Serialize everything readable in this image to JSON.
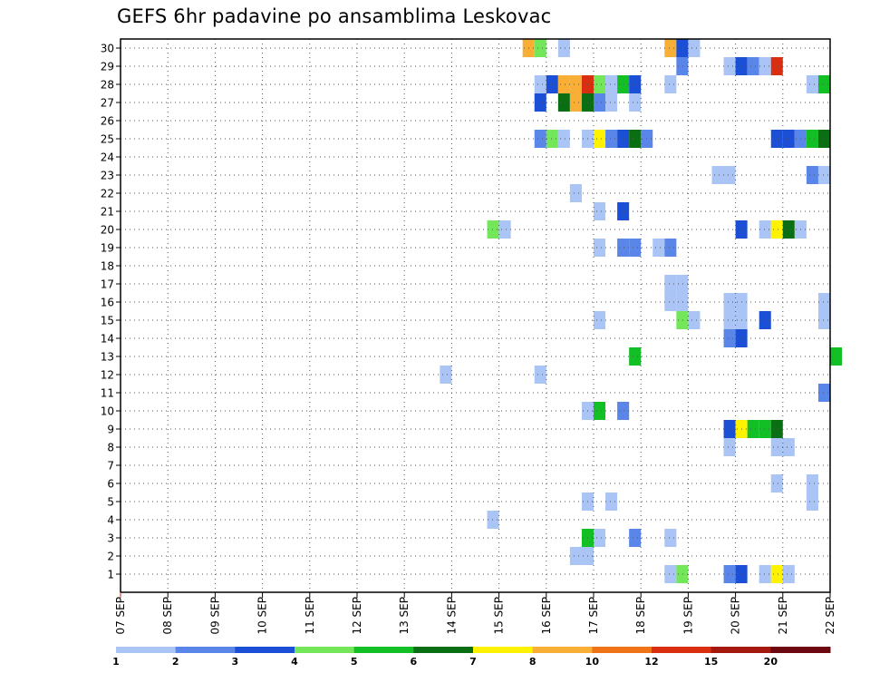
{
  "chart_data": {
    "type": "heatmap",
    "title": "GEFS 6hr padavine po ansamblima Leskovac",
    "x_tick_labels": [
      "07 SEP",
      "08 SEP",
      "09 SEP",
      "10 SEP",
      "11 SEP",
      "12 SEP",
      "13 SEP",
      "14 SEP",
      "15 SEP",
      "16 SEP",
      "17 SEP",
      "18 SEP",
      "19 SEP",
      "20 SEP",
      "21 SEP",
      "22 SEP"
    ],
    "y_tick_labels": [
      "1",
      "2",
      "3",
      "4",
      "5",
      "6",
      "7",
      "8",
      "9",
      "10",
      "11",
      "12",
      "13",
      "14",
      "15",
      "16",
      "17",
      "18",
      "19",
      "20",
      "21",
      "22",
      "23",
      "24",
      "25",
      "26",
      "27",
      "28",
      "29",
      "30"
    ],
    "xlim": [
      "07 SEP",
      "22 SEP"
    ],
    "ylim": [
      0,
      30
    ],
    "time_step_hours": 6,
    "grid": "dotted",
    "colorbar": {
      "levels": [
        1,
        2,
        3,
        4,
        5,
        6,
        7,
        8,
        10,
        12,
        15,
        20
      ],
      "labels": [
        "1",
        "2",
        "3",
        "4",
        "5",
        "6",
        "7",
        "8",
        "10",
        "12",
        "15",
        "20"
      ],
      "colors": [
        "#aac4f6",
        "#5a86ea",
        "#1b4fd6",
        "#74e65a",
        "#12bf25",
        "#0a6f12",
        "#fff200",
        "#f9ae36",
        "#f07318",
        "#d92e10",
        "#a41810",
        "#6e0810"
      ]
    },
    "cells": [
      [
        "15 SEP 12Z",
        30,
        "#f9ae36"
      ],
      [
        "15 SEP 18Z",
        30,
        "#74e65a"
      ],
      [
        "16 SEP 06Z",
        30,
        "#aac4f6"
      ],
      [
        "18 SEP 12Z",
        30,
        "#f9ae36"
      ],
      [
        "18 SEP 18Z",
        30,
        "#1b4fd6"
      ],
      [
        "19 SEP 00Z",
        30,
        "#aac4f6"
      ],
      [
        "18 SEP 18Z",
        29,
        "#5a86ea"
      ],
      [
        "19 SEP 18Z",
        29,
        "#aac4f6"
      ],
      [
        "20 SEP 00Z",
        29,
        "#1b4fd6"
      ],
      [
        "20 SEP 06Z",
        29,
        "#5a86ea"
      ],
      [
        "20 SEP 12Z",
        29,
        "#aac4f6"
      ],
      [
        "20 SEP 18Z",
        29,
        "#d92e10"
      ],
      [
        "15 SEP 18Z",
        28,
        "#aac4f6"
      ],
      [
        "16 SEP 00Z",
        28,
        "#1b4fd6"
      ],
      [
        "16 SEP 06Z",
        28,
        "#f9ae36"
      ],
      [
        "16 SEP 12Z",
        28,
        "#f9ae36"
      ],
      [
        "16 SEP 18Z",
        28,
        "#d92e10"
      ],
      [
        "17 SEP 00Z",
        28,
        "#74e65a"
      ],
      [
        "17 SEP 06Z",
        28,
        "#aac4f6"
      ],
      [
        "17 SEP 12Z",
        28,
        "#12bf25"
      ],
      [
        "17 SEP 18Z",
        28,
        "#1b4fd6"
      ],
      [
        "18 SEP 12Z",
        28,
        "#aac4f6"
      ],
      [
        "21 SEP 12Z",
        28,
        "#aac4f6"
      ],
      [
        "21 SEP 18Z",
        28,
        "#12bf25"
      ],
      [
        "15 SEP 18Z",
        27,
        "#1b4fd6"
      ],
      [
        "16 SEP 06Z",
        27,
        "#0a6f12"
      ],
      [
        "16 SEP 12Z",
        27,
        "#f9ae36"
      ],
      [
        "16 SEP 18Z",
        27,
        "#0a6f12"
      ],
      [
        "17 SEP 00Z",
        27,
        "#5a86ea"
      ],
      [
        "17 SEP 06Z",
        27,
        "#aac4f6"
      ],
      [
        "17 SEP 18Z",
        27,
        "#aac4f6"
      ],
      [
        "15 SEP 18Z",
        25,
        "#5a86ea"
      ],
      [
        "16 SEP 00Z",
        25,
        "#74e65a"
      ],
      [
        "16 SEP 06Z",
        25,
        "#aac4f6"
      ],
      [
        "16 SEP 18Z",
        25,
        "#aac4f6"
      ],
      [
        "17 SEP 00Z",
        25,
        "#fff200"
      ],
      [
        "17 SEP 06Z",
        25,
        "#5a86ea"
      ],
      [
        "17 SEP 12Z",
        25,
        "#1b4fd6"
      ],
      [
        "17 SEP 18Z",
        25,
        "#0a6f12"
      ],
      [
        "18 SEP 00Z",
        25,
        "#5a86ea"
      ],
      [
        "20 SEP 18Z",
        25,
        "#1b4fd6"
      ],
      [
        "21 SEP 00Z",
        25,
        "#1b4fd6"
      ],
      [
        "21 SEP 06Z",
        25,
        "#5a86ea"
      ],
      [
        "21 SEP 12Z",
        25,
        "#12bf25"
      ],
      [
        "21 SEP 18Z",
        25,
        "#0a6f12"
      ],
      [
        "19 SEP 12Z",
        23,
        "#aac4f6"
      ],
      [
        "19 SEP 18Z",
        23,
        "#aac4f6"
      ],
      [
        "21 SEP 12Z",
        23,
        "#5a86ea"
      ],
      [
        "21 SEP 18Z",
        23,
        "#aac4f6"
      ],
      [
        "16 SEP 12Z",
        22,
        "#aac4f6"
      ],
      [
        "17 SEP 00Z",
        21,
        "#aac4f6"
      ],
      [
        "17 SEP 12Z",
        21,
        "#1b4fd6"
      ],
      [
        "14 SEP 18Z",
        20,
        "#74e65a"
      ],
      [
        "15 SEP 00Z",
        20,
        "#aac4f6"
      ],
      [
        "20 SEP 00Z",
        20,
        "#1b4fd6"
      ],
      [
        "20 SEP 12Z",
        20,
        "#aac4f6"
      ],
      [
        "20 SEP 18Z",
        20,
        "#fff200"
      ],
      [
        "21 SEP 00Z",
        20,
        "#0a6f12"
      ],
      [
        "21 SEP 06Z",
        20,
        "#aac4f6"
      ],
      [
        "17 SEP 00Z",
        19,
        "#aac4f6"
      ],
      [
        "17 SEP 12Z",
        19,
        "#5a86ea"
      ],
      [
        "17 SEP 18Z",
        19,
        "#5a86ea"
      ],
      [
        "18 SEP 06Z",
        19,
        "#aac4f6"
      ],
      [
        "18 SEP 12Z",
        19,
        "#5a86ea"
      ],
      [
        "18 SEP 12Z",
        17,
        "#aac4f6"
      ],
      [
        "18 SEP 18Z",
        17,
        "#aac4f6"
      ],
      [
        "18 SEP 12Z",
        16,
        "#aac4f6"
      ],
      [
        "18 SEP 18Z",
        16,
        "#aac4f6"
      ],
      [
        "17 SEP 00Z",
        15,
        "#aac4f6"
      ],
      [
        "18 SEP 18Z",
        15,
        "#74e65a"
      ],
      [
        "19 SEP 00Z",
        15,
        "#aac4f6"
      ],
      [
        "19 SEP 18Z",
        15,
        "#aac4f6"
      ],
      [
        "20 SEP 00Z",
        15,
        "#aac4f6"
      ],
      [
        "20 SEP 12Z",
        15,
        "#1b4fd6"
      ],
      [
        "21 SEP 18Z",
        15,
        "#aac4f6"
      ],
      [
        "19 SEP 18Z",
        16,
        "#aac4f6"
      ],
      [
        "20 SEP 00Z",
        16,
        "#aac4f6"
      ],
      [
        "21 SEP 18Z",
        16,
        "#aac4f6"
      ],
      [
        "19 SEP 18Z",
        14,
        "#5a86ea"
      ],
      [
        "20 SEP 00Z",
        14,
        "#1b4fd6"
      ],
      [
        "17 SEP 18Z",
        13,
        "#12bf25"
      ],
      [
        "22 SEP 00Z",
        13,
        "#12bf25"
      ],
      [
        "13 SEP 18Z",
        12,
        "#aac4f6"
      ],
      [
        "15 SEP 18Z",
        12,
        "#aac4f6"
      ],
      [
        "21 SEP 18Z",
        11,
        "#5a86ea"
      ],
      [
        "16 SEP 18Z",
        10,
        "#aac4f6"
      ],
      [
        "17 SEP 00Z",
        10,
        "#12bf25"
      ],
      [
        "17 SEP 12Z",
        10,
        "#5a86ea"
      ],
      [
        "19 SEP 18Z",
        9,
        "#1b4fd6"
      ],
      [
        "20 SEP 00Z",
        9,
        "#fff200"
      ],
      [
        "20 SEP 06Z",
        9,
        "#12bf25"
      ],
      [
        "20 SEP 12Z",
        9,
        "#12bf25"
      ],
      [
        "20 SEP 18Z",
        9,
        "#0a6f12"
      ],
      [
        "19 SEP 18Z",
        8,
        "#aac4f6"
      ],
      [
        "20 SEP 18Z",
        8,
        "#aac4f6"
      ],
      [
        "21 SEP 00Z",
        8,
        "#aac4f6"
      ],
      [
        "20 SEP 18Z",
        6,
        "#aac4f6"
      ],
      [
        "21 SEP 12Z",
        6,
        "#aac4f6"
      ],
      [
        "16 SEP 18Z",
        5,
        "#aac4f6"
      ],
      [
        "17 SEP 06Z",
        5,
        "#aac4f6"
      ],
      [
        "21 SEP 12Z",
        5,
        "#aac4f6"
      ],
      [
        "14 SEP 18Z",
        4,
        "#aac4f6"
      ],
      [
        "16 SEP 18Z",
        3,
        "#12bf25"
      ],
      [
        "17 SEP 00Z",
        3,
        "#aac4f6"
      ],
      [
        "17 SEP 18Z",
        3,
        "#5a86ea"
      ],
      [
        "18 SEP 12Z",
        3,
        "#aac4f6"
      ],
      [
        "16 SEP 12Z",
        2,
        "#aac4f6"
      ],
      [
        "16 SEP 18Z",
        2,
        "#aac4f6"
      ],
      [
        "18 SEP 12Z",
        1,
        "#aac4f6"
      ],
      [
        "18 SEP 18Z",
        1,
        "#74e65a"
      ],
      [
        "19 SEP 18Z",
        1,
        "#5a86ea"
      ],
      [
        "20 SEP 00Z",
        1,
        "#1b4fd6"
      ],
      [
        "20 SEP 12Z",
        1,
        "#aac4f6"
      ],
      [
        "20 SEP 18Z",
        1,
        "#fff200"
      ],
      [
        "21 SEP 00Z",
        1,
        "#aac4f6"
      ]
    ]
  }
}
